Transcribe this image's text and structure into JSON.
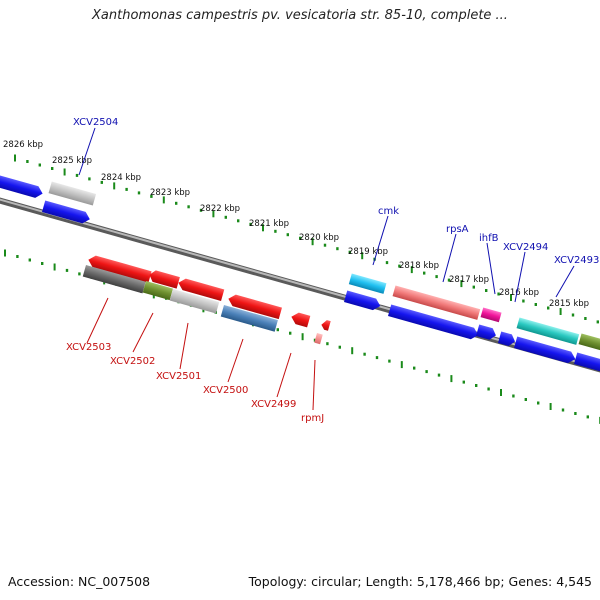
{
  "title": "Xanthomonas campestris pv. vesicatoria str. 85-10, complete ...",
  "footer": {
    "accession": "Accession: NC_007508",
    "stats": "Topology: circular; Length: 5,178,466 bp; Genes: 4,545"
  },
  "kbp_ticks": [
    "2826 kbp",
    "2825 kbp",
    "2824 kbp",
    "2823 kbp",
    "2822 kbp",
    "2821 kbp",
    "2820 kbp",
    "2819 kbp",
    "2818 kbp",
    "2817 kbp",
    "2816 kbp",
    "2815 kbp"
  ],
  "top_labels": [
    "XCV2504",
    "cmk",
    "rpsA",
    "ihfB",
    "XCV2494",
    "XCV2493"
  ],
  "bottom_labels": [
    "XCV2503",
    "XCV2502",
    "XCV2501",
    "XCV2500",
    "XCV2499",
    "rpmJ"
  ],
  "colors": {
    "backbone": "#7a7a7a",
    "tick_green": "#1a8a1a",
    "forward_blue": "#1010e0",
    "reverse_red": "#e01010",
    "label_blue": "#1010b0",
    "label_red": "#c41010"
  }
}
